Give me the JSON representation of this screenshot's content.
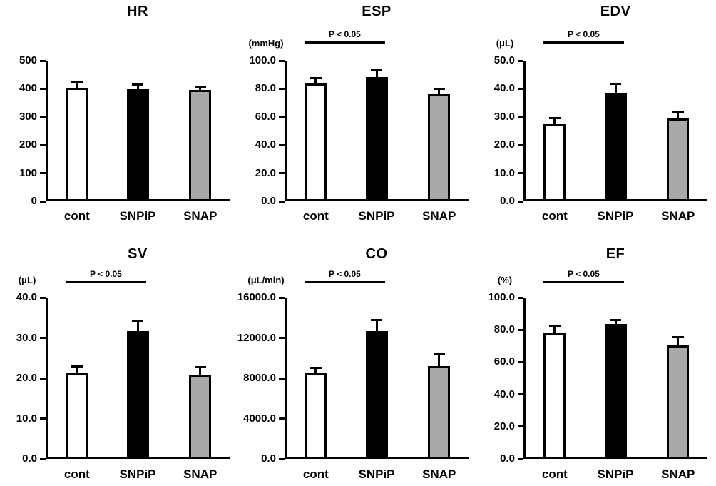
{
  "figure": {
    "background": "#ffffff",
    "text_color": "#000000",
    "axis_color": "#000000",
    "bar_fill_colors": [
      "#ffffff",
      "#000000",
      "#a9a9a9"
    ],
    "bar_border_color": "#000000",
    "categories": [
      "cont",
      "SNPiP",
      "SNAP"
    ],
    "significance_label": "P < 0.05"
  },
  "chart_data": [
    {
      "type": "bar",
      "title": "HR",
      "unit": "",
      "categories": [
        "cont",
        "SNPiP",
        "SNAP"
      ],
      "values": [
        403,
        398,
        397
      ],
      "errors": [
        18,
        13,
        5
      ],
      "ylim": [
        0,
        500
      ],
      "yticks": [
        "0",
        "100",
        "200",
        "300",
        "400",
        "500"
      ],
      "grid": false,
      "legend": null,
      "significance": null
    },
    {
      "type": "bar",
      "title": "ESP",
      "unit": "(mmHg)",
      "categories": [
        "cont",
        "SNPiP",
        "SNAP"
      ],
      "values": [
        84,
        88.5,
        76
      ],
      "errors": [
        3,
        4.5,
        3
      ],
      "ylim": [
        0,
        100
      ],
      "yticks": [
        "0.0",
        "20.0",
        "40.0",
        "60.0",
        "80.0",
        "100.0"
      ],
      "grid": false,
      "legend": null,
      "significance": {
        "label": "P < 0.05",
        "from": "cont",
        "to": "SNPiP"
      }
    },
    {
      "type": "bar",
      "title": "EDV",
      "unit": "(μL)",
      "categories": [
        "cont",
        "SNPiP",
        "SNAP"
      ],
      "values": [
        27.5,
        38.5,
        29.5
      ],
      "errors": [
        1.6,
        3,
        2
      ],
      "ylim": [
        0,
        50
      ],
      "yticks": [
        "0.0",
        "10.0",
        "20.0",
        "30.0",
        "40.0",
        "50.0"
      ],
      "grid": false,
      "legend": null,
      "significance": {
        "label": "P < 0.05",
        "from": "cont",
        "to": "SNPiP"
      }
    },
    {
      "type": "bar",
      "title": "SV",
      "unit": "(μL)",
      "categories": [
        "cont",
        "SNPiP",
        "SNAP"
      ],
      "values": [
        21.3,
        31.7,
        20.8
      ],
      "errors": [
        1.3,
        2.2,
        1.7
      ],
      "ylim": [
        0,
        40
      ],
      "yticks": [
        "0.0",
        "10.0",
        "20.0",
        "30.0",
        "40.0"
      ],
      "grid": false,
      "legend": null,
      "significance": {
        "label": "P < 0.05",
        "from": "cont",
        "to": "SNPiP"
      }
    },
    {
      "type": "bar",
      "title": "CO",
      "unit": "(μL/min)",
      "categories": [
        "cont",
        "SNPiP",
        "SNAP"
      ],
      "values": [
        8500,
        12650,
        9200
      ],
      "errors": [
        450,
        1050,
        1050
      ],
      "ylim": [
        0,
        16000
      ],
      "yticks": [
        "0.0",
        "4000.0",
        "8000.0",
        "12000.0",
        "16000.0"
      ],
      "grid": false,
      "legend": null,
      "significance": {
        "label": "P < 0.05",
        "from": "cont",
        "to": "SNPiP"
      }
    },
    {
      "type": "bar",
      "title": "EF",
      "unit": "(%)",
      "categories": [
        "cont",
        "SNPiP",
        "SNAP"
      ],
      "values": [
        78.5,
        83.5,
        70.5
      ],
      "errors": [
        3.5,
        2,
        4.5
      ],
      "ylim": [
        0,
        100
      ],
      "yticks": [
        "0.0",
        "20.0",
        "40.0",
        "60.0",
        "80.0",
        "100.0"
      ],
      "grid": false,
      "legend": null,
      "significance": {
        "label": "P < 0.05",
        "from": "cont",
        "to": "SNPiP"
      }
    }
  ]
}
